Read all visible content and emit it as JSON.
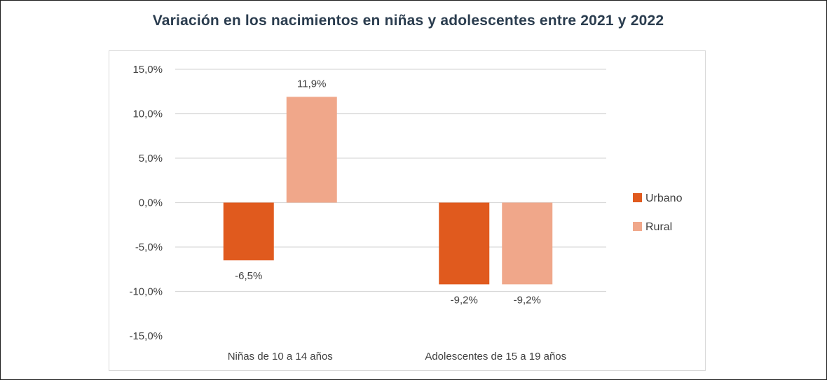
{
  "chart_data": {
    "type": "bar",
    "title": "Variación en los nacimientos en niñas y adolescentes entre 2021 y 2022",
    "categories": [
      "Niñas de 10 a 14 años",
      "Adolescentes de 15 a 19 años"
    ],
    "series": [
      {
        "name": "Urbano",
        "color": "#e05a1e",
        "values": [
          -6.5,
          -9.2
        ],
        "labels": [
          "-6,5%",
          "-9,2%"
        ]
      },
      {
        "name": "Rural",
        "color": "#f0a78a",
        "values": [
          11.9,
          -9.2
        ],
        "labels": [
          "11,9%",
          "-9,2%"
        ]
      }
    ],
    "ylim": [
      -15,
      15
    ],
    "yticks": [
      15,
      10,
      5,
      0,
      -5,
      -10,
      -15
    ],
    "ytick_labels": [
      "15,0%",
      "10,0%",
      "5,0%",
      "0,0%",
      "-5,0%",
      "-10,0%",
      "-15,0%"
    ],
    "grid": true,
    "legend_position": "right",
    "xlabel": "",
    "ylabel": ""
  }
}
